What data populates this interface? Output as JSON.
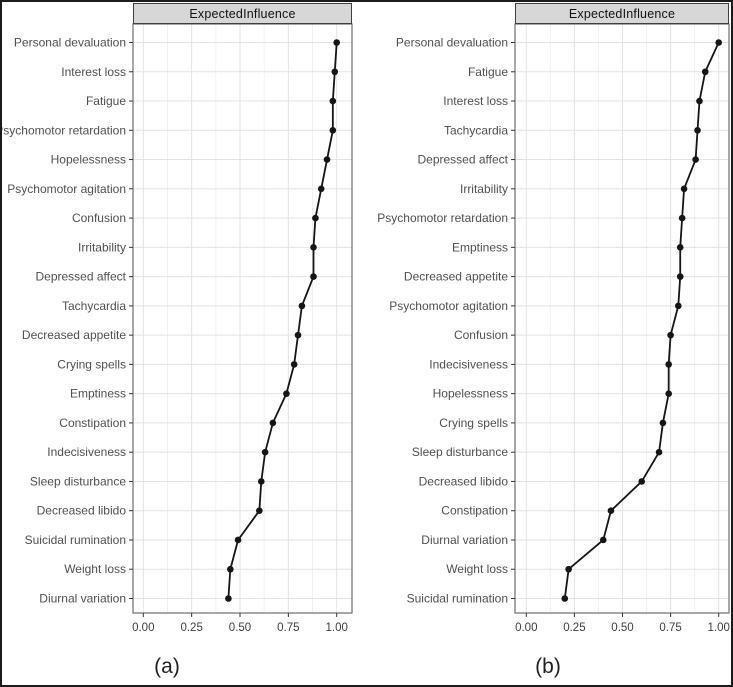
{
  "figure": {
    "background": "#ffffff",
    "frame_color": "#1b1b1b"
  },
  "style": {
    "strip_bg": "#d7d7d7",
    "strip_border": "#3f3f3f",
    "strip_text": "#111111",
    "panel_bg": "#ffffff",
    "panel_border": "#6f6f6f",
    "grid_major": "#e3e3e3",
    "grid_minor": "#f1f1f1",
    "tick_color": "#333333",
    "category_label_color": "#4f4f4f",
    "axis_label_color": "#3d3d3d",
    "line_color": "#151515",
    "point_color": "#151515",
    "caption_color": "#1f1f1f"
  },
  "chart_data": [
    {
      "type": "line",
      "orientation": "horizontal-dot-line",
      "title": "ExpectedInfluence",
      "caption": "(a)",
      "xlabel": "",
      "ylabel": "",
      "xlim": [
        0,
        1
      ],
      "x_ticks": [
        0,
        0.25,
        0.5,
        0.75,
        1
      ],
      "x_tick_labels": [
        "0.00",
        "0.25",
        "0.50",
        "0.75",
        "1.00"
      ],
      "x_minor_ticks": [
        0.125,
        0.375,
        0.625,
        0.875
      ],
      "grid": "on",
      "legend": "none",
      "categories": [
        "Personal devaluation",
        "Interest loss",
        "Fatigue",
        "Psychomotor retardation",
        "Hopelessness",
        "Psychomotor agitation",
        "Confusion",
        "Irritability",
        "Depressed affect",
        "Tachycardia",
        "Decreased appetite",
        "Crying spells",
        "Emptiness",
        "Constipation",
        "Indecisiveness",
        "Sleep disturbance",
        "Decreased libido",
        "Suicidal rumination",
        "Weight loss",
        "Diurnal variation"
      ],
      "values": [
        1.0,
        0.99,
        0.98,
        0.98,
        0.95,
        0.92,
        0.89,
        0.88,
        0.88,
        0.82,
        0.8,
        0.78,
        0.74,
        0.67,
        0.63,
        0.61,
        0.6,
        0.49,
        0.45,
        0.44
      ]
    },
    {
      "type": "line",
      "orientation": "horizontal-dot-line",
      "title": "ExpectedInfluence",
      "caption": "(b)",
      "xlabel": "",
      "ylabel": "",
      "xlim": [
        0,
        1
      ],
      "x_ticks": [
        0,
        0.25,
        0.5,
        0.75,
        1
      ],
      "x_tick_labels": [
        "0.00",
        "0.25",
        "0.50",
        "0.75",
        "1.00"
      ],
      "x_minor_ticks": [
        0.125,
        0.375,
        0.625,
        0.875
      ],
      "grid": "on",
      "legend": "none",
      "categories": [
        "Personal devaluation",
        "Fatigue",
        "Interest loss",
        "Tachycardia",
        "Depressed affect",
        "Irritability",
        "Psychomotor retardation",
        "Emptiness",
        "Decreased appetite",
        "Psychomotor agitation",
        "Confusion",
        "Indecisiveness",
        "Hopelessness",
        "Crying spells",
        "Sleep disturbance",
        "Decreased libido",
        "Constipation",
        "Diurnal variation",
        "Weight loss",
        "Suicidal rumination"
      ],
      "values": [
        1.0,
        0.93,
        0.9,
        0.89,
        0.88,
        0.82,
        0.81,
        0.8,
        0.8,
        0.79,
        0.75,
        0.74,
        0.74,
        0.71,
        0.69,
        0.6,
        0.44,
        0.4,
        0.22,
        0.2
      ]
    }
  ]
}
